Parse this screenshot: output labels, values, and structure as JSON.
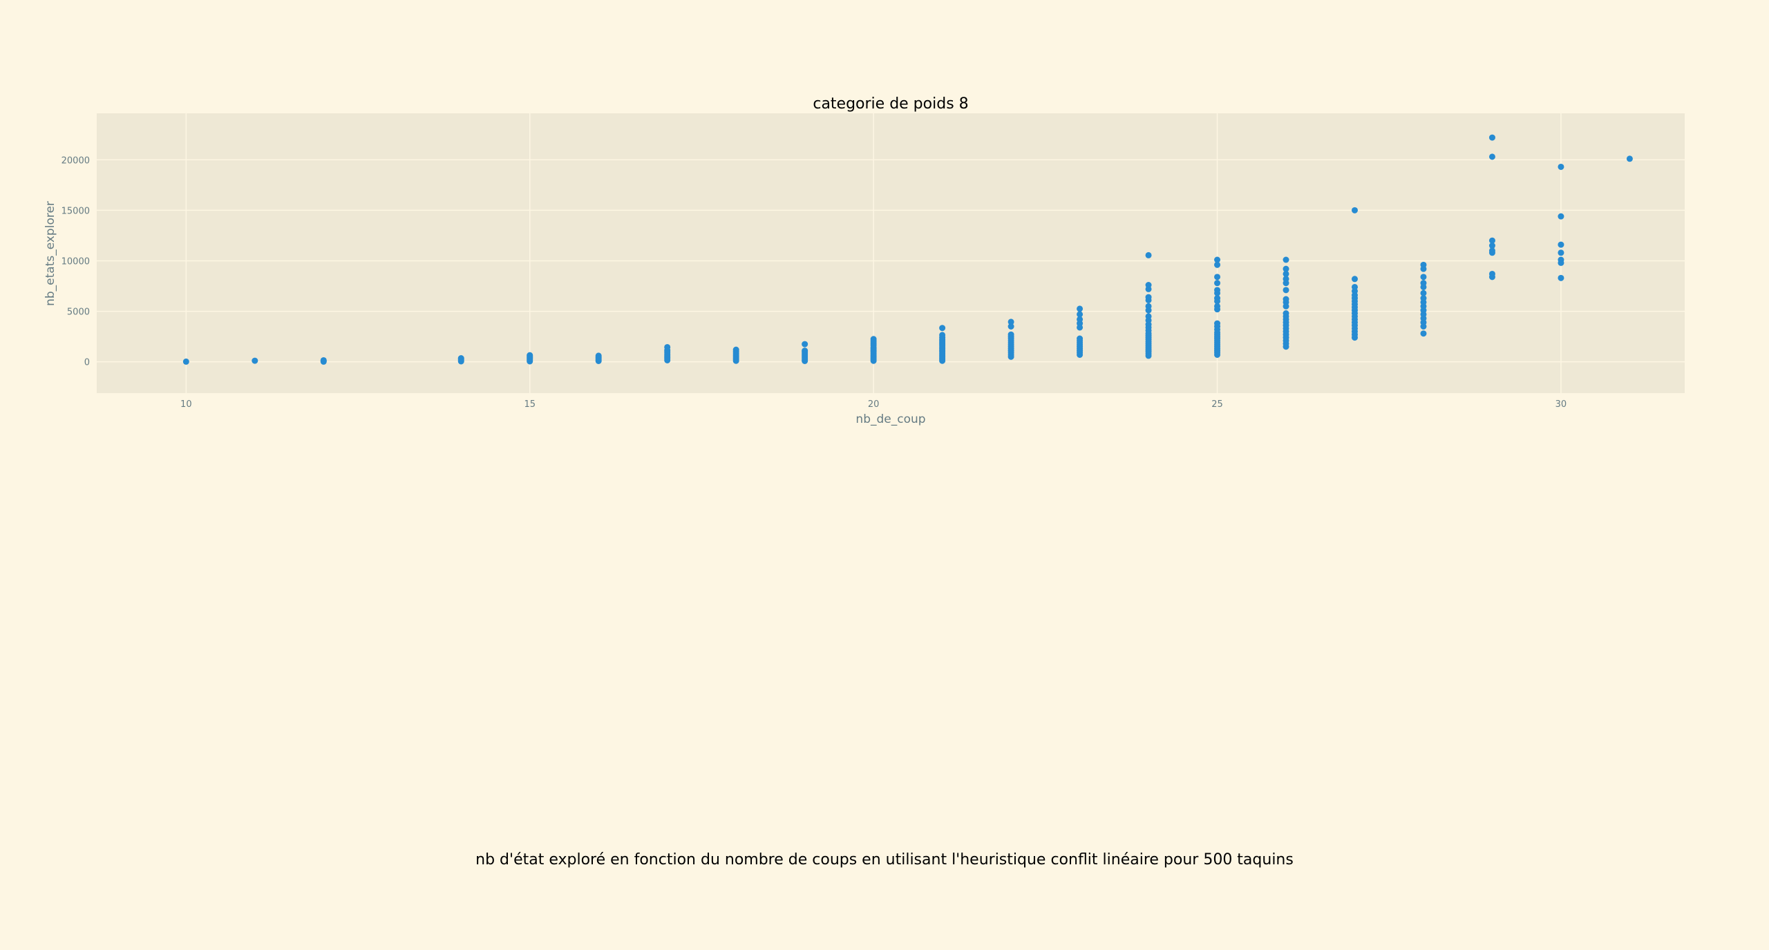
{
  "caption": "nb d'état exploré en fonction du nombre de coups en utilisant l'heuristique conflit linéaire pour 500 taquins",
  "colors": {
    "background": "#fdf6e3",
    "plot_background": "#eee8d5",
    "grid": "#fdf6e3",
    "marker": "#268bd2",
    "axis_text": "#657b83"
  },
  "chart_data": {
    "type": "scatter",
    "title": "categorie de poids 8",
    "xlabel": "nb_de_coup",
    "ylabel": "nb_etats_explorer",
    "xlim": [
      8.7,
      31.8
    ],
    "ylim": [
      -3100,
      24600
    ],
    "xticks": [
      10,
      15,
      20,
      25,
      30
    ],
    "yticks": [
      0,
      5000,
      10000,
      15000,
      20000
    ],
    "grid": true,
    "points": [
      [
        10,
        20
      ],
      [
        11,
        110
      ],
      [
        12,
        20
      ],
      [
        12,
        80
      ],
      [
        12,
        150
      ],
      [
        14,
        50
      ],
      [
        14,
        150
      ],
      [
        14,
        250
      ],
      [
        14,
        350
      ],
      [
        15,
        50
      ],
      [
        15,
        150
      ],
      [
        15,
        250
      ],
      [
        15,
        350
      ],
      [
        15,
        450
      ],
      [
        15,
        550
      ],
      [
        15,
        650
      ],
      [
        16,
        80
      ],
      [
        16,
        200
      ],
      [
        16,
        320
      ],
      [
        16,
        450
      ],
      [
        16,
        600
      ],
      [
        17,
        150
      ],
      [
        17,
        300
      ],
      [
        17,
        450
      ],
      [
        17,
        600
      ],
      [
        17,
        750
      ],
      [
        17,
        950
      ],
      [
        17,
        1150
      ],
      [
        17,
        1450
      ],
      [
        18,
        100
      ],
      [
        18,
        250
      ],
      [
        18,
        400
      ],
      [
        18,
        550
      ],
      [
        18,
        700
      ],
      [
        18,
        850
      ],
      [
        18,
        1000
      ],
      [
        18,
        1200
      ],
      [
        19,
        80
      ],
      [
        19,
        200
      ],
      [
        19,
        350
      ],
      [
        19,
        500
      ],
      [
        19,
        650
      ],
      [
        19,
        800
      ],
      [
        19,
        950
      ],
      [
        19,
        1100
      ],
      [
        19,
        1750
      ],
      [
        20,
        100
      ],
      [
        20,
        250
      ],
      [
        20,
        400
      ],
      [
        20,
        550
      ],
      [
        20,
        700
      ],
      [
        20,
        850
      ],
      [
        20,
        1000
      ],
      [
        20,
        1150
      ],
      [
        20,
        1300
      ],
      [
        20,
        1450
      ],
      [
        20,
        1650
      ],
      [
        20,
        1850
      ],
      [
        20,
        2050
      ],
      [
        20,
        2250
      ],
      [
        21,
        100
      ],
      [
        21,
        250
      ],
      [
        21,
        400
      ],
      [
        21,
        550
      ],
      [
        21,
        700
      ],
      [
        21,
        850
      ],
      [
        21,
        1000
      ],
      [
        21,
        1150
      ],
      [
        21,
        1300
      ],
      [
        21,
        1450
      ],
      [
        21,
        1600
      ],
      [
        21,
        1750
      ],
      [
        21,
        1900
      ],
      [
        21,
        2050
      ],
      [
        21,
        2200
      ],
      [
        21,
        2400
      ],
      [
        21,
        2650
      ],
      [
        21,
        3350
      ],
      [
        22,
        500
      ],
      [
        22,
        700
      ],
      [
        22,
        900
      ],
      [
        22,
        1100
      ],
      [
        22,
        1300
      ],
      [
        22,
        1500
      ],
      [
        22,
        1700
      ],
      [
        22,
        1900
      ],
      [
        22,
        2100
      ],
      [
        22,
        2300
      ],
      [
        22,
        2500
      ],
      [
        22,
        2700
      ],
      [
        22,
        3500
      ],
      [
        22,
        3950
      ],
      [
        23,
        700
      ],
      [
        23,
        900
      ],
      [
        23,
        1100
      ],
      [
        23,
        1300
      ],
      [
        23,
        1500
      ],
      [
        23,
        1700
      ],
      [
        23,
        1900
      ],
      [
        23,
        2100
      ],
      [
        23,
        2300
      ],
      [
        23,
        3400
      ],
      [
        23,
        3800
      ],
      [
        23,
        4200
      ],
      [
        23,
        4700
      ],
      [
        23,
        5250
      ],
      [
        24,
        600
      ],
      [
        24,
        800
      ],
      [
        24,
        1000
      ],
      [
        24,
        1200
      ],
      [
        24,
        1400
      ],
      [
        24,
        1600
      ],
      [
        24,
        1800
      ],
      [
        24,
        2000
      ],
      [
        24,
        2200
      ],
      [
        24,
        2400
      ],
      [
        24,
        2600
      ],
      [
        24,
        2800
      ],
      [
        24,
        3100
      ],
      [
        24,
        3400
      ],
      [
        24,
        3700
      ],
      [
        24,
        4100
      ],
      [
        24,
        4500
      ],
      [
        24,
        5100
      ],
      [
        24,
        5500
      ],
      [
        24,
        6100
      ],
      [
        24,
        6400
      ],
      [
        24,
        7200
      ],
      [
        24,
        7600
      ],
      [
        24,
        10550
      ],
      [
        25,
        700
      ],
      [
        25,
        900
      ],
      [
        25,
        1100
      ],
      [
        25,
        1300
      ],
      [
        25,
        1500
      ],
      [
        25,
        1700
      ],
      [
        25,
        1900
      ],
      [
        25,
        2100
      ],
      [
        25,
        2300
      ],
      [
        25,
        2500
      ],
      [
        25,
        2700
      ],
      [
        25,
        2900
      ],
      [
        25,
        3200
      ],
      [
        25,
        3500
      ],
      [
        25,
        3800
      ],
      [
        25,
        5200
      ],
      [
        25,
        5500
      ],
      [
        25,
        6000
      ],
      [
        25,
        6300
      ],
      [
        25,
        6800
      ],
      [
        25,
        7100
      ],
      [
        25,
        7800
      ],
      [
        25,
        8400
      ],
      [
        25,
        9600
      ],
      [
        25,
        10100
      ],
      [
        26,
        1500
      ],
      [
        26,
        1800
      ],
      [
        26,
        2100
      ],
      [
        26,
        2400
      ],
      [
        26,
        2700
      ],
      [
        26,
        3000
      ],
      [
        26,
        3300
      ],
      [
        26,
        3600
      ],
      [
        26,
        3900
      ],
      [
        26,
        4200
      ],
      [
        26,
        4500
      ],
      [
        26,
        4800
      ],
      [
        26,
        5500
      ],
      [
        26,
        5900
      ],
      [
        26,
        6200
      ],
      [
        26,
        7100
      ],
      [
        26,
        7800
      ],
      [
        26,
        8200
      ],
      [
        26,
        8700
      ],
      [
        26,
        9200
      ],
      [
        26,
        10100
      ],
      [
        27,
        2400
      ],
      [
        27,
        2700
      ],
      [
        27,
        3000
      ],
      [
        27,
        3300
      ],
      [
        27,
        3600
      ],
      [
        27,
        3900
      ],
      [
        27,
        4200
      ],
      [
        27,
        4500
      ],
      [
        27,
        4800
      ],
      [
        27,
        5100
      ],
      [
        27,
        5400
      ],
      [
        27,
        5700
      ],
      [
        27,
        6000
      ],
      [
        27,
        6300
      ],
      [
        27,
        6600
      ],
      [
        27,
        7000
      ],
      [
        27,
        7400
      ],
      [
        27,
        8200
      ],
      [
        27,
        15000
      ],
      [
        28,
        2800
      ],
      [
        28,
        3500
      ],
      [
        28,
        3900
      ],
      [
        28,
        4300
      ],
      [
        28,
        4700
      ],
      [
        28,
        5100
      ],
      [
        28,
        5500
      ],
      [
        28,
        5900
      ],
      [
        28,
        6300
      ],
      [
        28,
        6800
      ],
      [
        28,
        7400
      ],
      [
        28,
        7800
      ],
      [
        28,
        8400
      ],
      [
        28,
        9200
      ],
      [
        28,
        9600
      ],
      [
        29,
        8400
      ],
      [
        29,
        8700
      ],
      [
        29,
        10800
      ],
      [
        29,
        11000
      ],
      [
        29,
        11500
      ],
      [
        29,
        12000
      ],
      [
        29,
        20300
      ],
      [
        29,
        22200
      ],
      [
        30,
        8300
      ],
      [
        30,
        9800
      ],
      [
        30,
        10100
      ],
      [
        30,
        10800
      ],
      [
        30,
        11600
      ],
      [
        30,
        14400
      ],
      [
        30,
        19300
      ],
      [
        31,
        20100
      ]
    ]
  }
}
